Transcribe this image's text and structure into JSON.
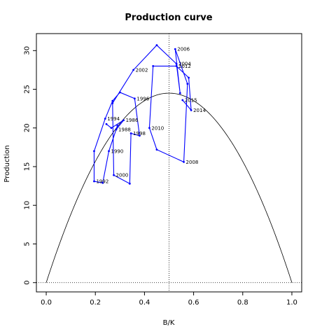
{
  "chart_data": {
    "type": "line",
    "title": "Production curve",
    "xlabel": "B/K",
    "ylabel": "Production",
    "xlim": [
      -0.04,
      1.04
    ],
    "ylim": [
      -1.2,
      32.2
    ],
    "xticks": [
      "0.0",
      "0.2",
      "0.4",
      "0.6",
      "0.8",
      "1.0"
    ],
    "yticks": [
      "0",
      "5",
      "10",
      "15",
      "20",
      "25",
      "30"
    ],
    "curve": {
      "type": "parabola",
      "r_over": 98.0,
      "peak_x": 0.5,
      "peak_y": 24.5,
      "color": "#000000"
    },
    "reference_lines": {
      "vertical_x": 0.5,
      "horizontal_y": 0
    },
    "series": [
      {
        "color": "#0000ff",
        "points": [
          {
            "x": 0.245,
            "y": 20.5,
            "label": ""
          },
          {
            "x": 0.265,
            "y": 20.0,
            "label": ""
          },
          {
            "x": 0.315,
            "y": 21.0,
            "label": "1986"
          },
          {
            "x": 0.285,
            "y": 19.8,
            "label": "1988"
          },
          {
            "x": 0.29,
            "y": 20.3,
            "label": ""
          },
          {
            "x": 0.255,
            "y": 17.0,
            "label": "1990"
          },
          {
            "x": 0.23,
            "y": 12.9,
            "label": ""
          },
          {
            "x": 0.195,
            "y": 13.1,
            "label": "1992"
          },
          {
            "x": 0.195,
            "y": 17.0,
            "label": ""
          },
          {
            "x": 0.24,
            "y": 21.2,
            "label": "1994"
          },
          {
            "x": 0.27,
            "y": 23.5,
            "label": ""
          },
          {
            "x": 0.3,
            "y": 24.6,
            "label": ""
          },
          {
            "x": 0.36,
            "y": 23.8,
            "label": "1996"
          },
          {
            "x": 0.38,
            "y": 19.0,
            "label": ""
          },
          {
            "x": 0.345,
            "y": 19.3,
            "label": "1998"
          },
          {
            "x": 0.34,
            "y": 12.8,
            "label": ""
          },
          {
            "x": 0.275,
            "y": 13.9,
            "label": "2000"
          },
          {
            "x": 0.27,
            "y": 23.2,
            "label": ""
          },
          {
            "x": 0.355,
            "y": 27.5,
            "label": "2002"
          },
          {
            "x": 0.45,
            "y": 30.7,
            "label": ""
          },
          {
            "x": 0.53,
            "y": 28.3,
            "label": "2004"
          },
          {
            "x": 0.545,
            "y": 24.5,
            "label": ""
          },
          {
            "x": 0.525,
            "y": 30.2,
            "label": "2006"
          },
          {
            "x": 0.575,
            "y": 25.7,
            "label": ""
          },
          {
            "x": 0.56,
            "y": 15.6,
            "label": "2008"
          },
          {
            "x": 0.45,
            "y": 17.2,
            "label": ""
          },
          {
            "x": 0.42,
            "y": 20.0,
            "label": "2010"
          },
          {
            "x": 0.435,
            "y": 28.0,
            "label": ""
          },
          {
            "x": 0.53,
            "y": 28.0,
            "label": "2012"
          },
          {
            "x": 0.58,
            "y": 26.5,
            "label": ""
          },
          {
            "x": 0.59,
            "y": 22.3,
            "label": "2014"
          },
          {
            "x": 0.555,
            "y": 23.6,
            "label": "2015"
          }
        ]
      }
    ],
    "grid": false
  }
}
